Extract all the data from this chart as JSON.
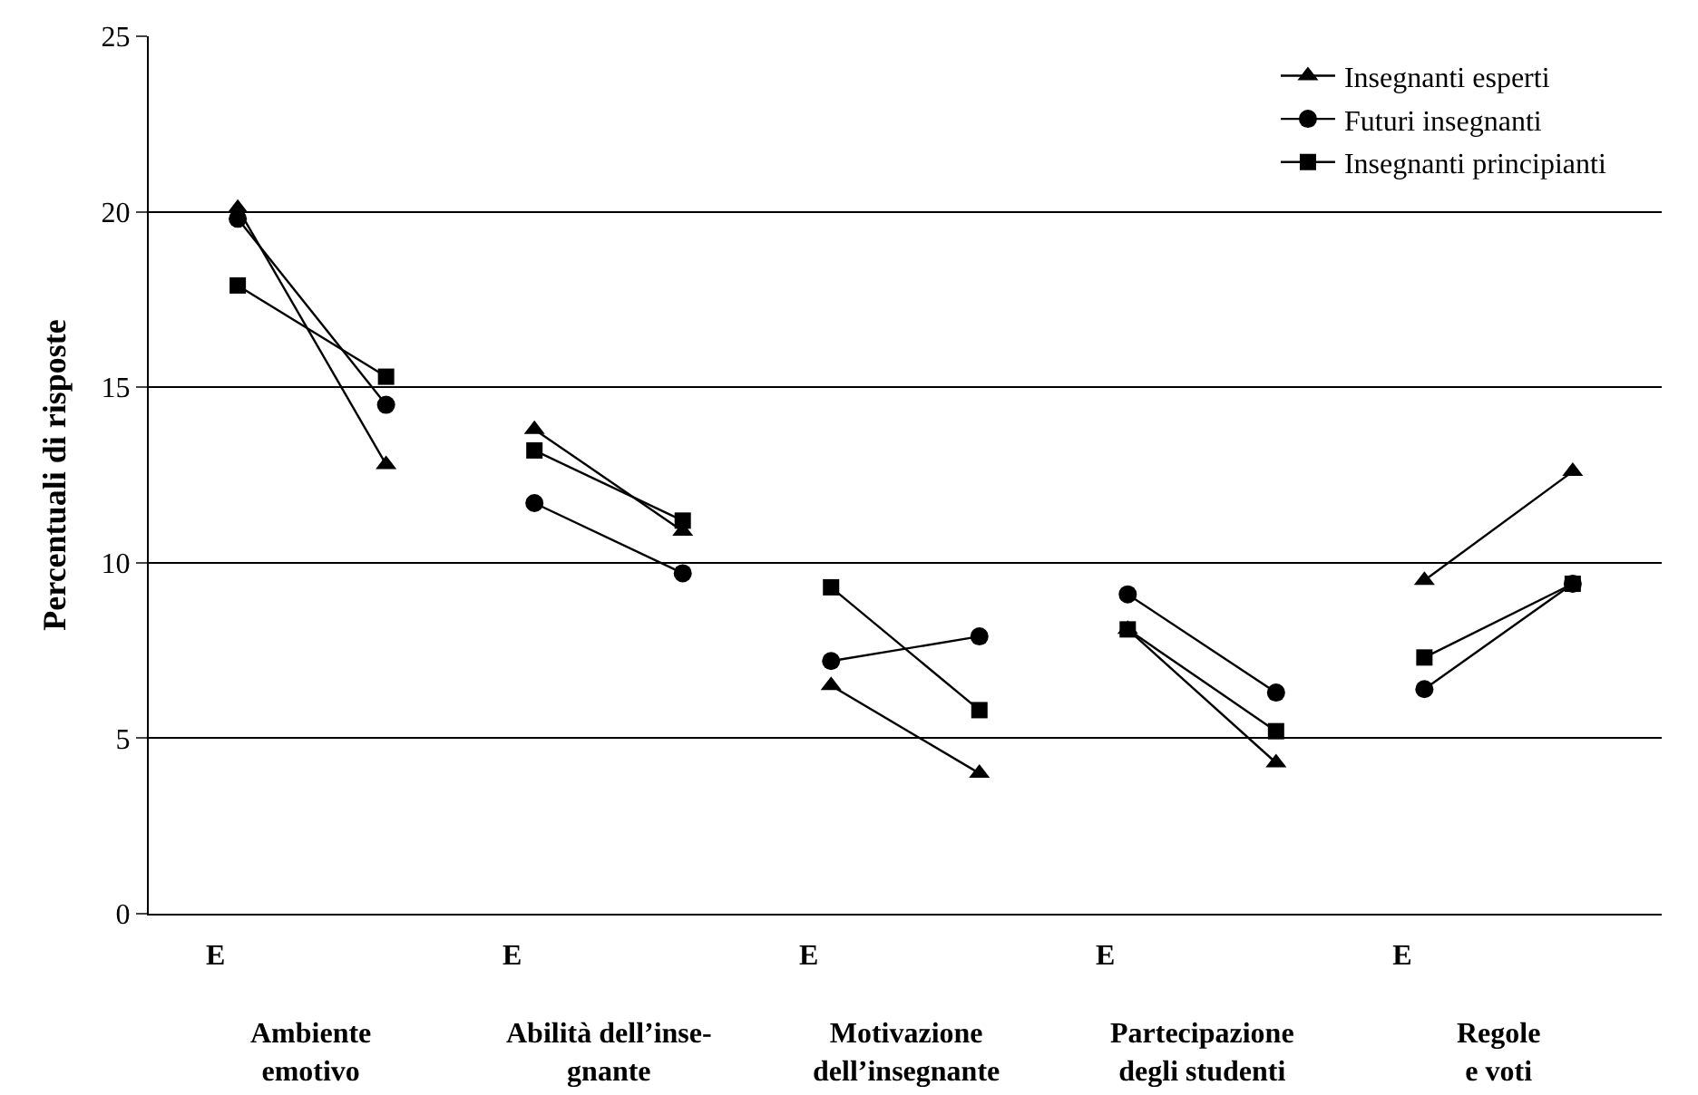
{
  "chart_data": {
    "type": "line",
    "ylabel": "Percentuali di risposte",
    "categories": [
      "E",
      null,
      "E",
      null,
      "E",
      null,
      "E",
      null,
      "E",
      null
    ],
    "series": [
      {
        "name": "Insegnanti esperti",
        "color": "#000000",
        "marker": "triangle",
        "values": [
          20.1,
          12.8,
          13.8,
          10.9,
          6.5,
          4.0,
          8.1,
          4.3,
          9.5,
          12.6
        ]
      },
      {
        "name": "Futuri insegnanti",
        "color": "#000000",
        "marker": "circle",
        "values": [
          19.8,
          14.5,
          11.7,
          9.7,
          7.2,
          7.9,
          9.1,
          6.3,
          6.4,
          9.4
        ]
      },
      {
        "name": "Insegnanti principianti",
        "color": "#000000",
        "marker": "square",
        "values": [
          17.9,
          15.3,
          13.2,
          11.2,
          9.3,
          5.8,
          8.1,
          5.2,
          7.3,
          9.4
        ]
      }
    ],
    "annotations": [
      "Ambiente\nemotivo",
      "Abilità dell’inse-\ngnante",
      "Motivazione\ndell’insegnante",
      "Partecipazione\ndegli studenti",
      "Regole\ne voti"
    ],
    "ylim": [
      0,
      25
    ],
    "yticks": [
      0,
      5,
      10,
      15,
      20,
      25
    ],
    "grid": "y",
    "legend": "top right",
    "line_style": "solid"
  }
}
